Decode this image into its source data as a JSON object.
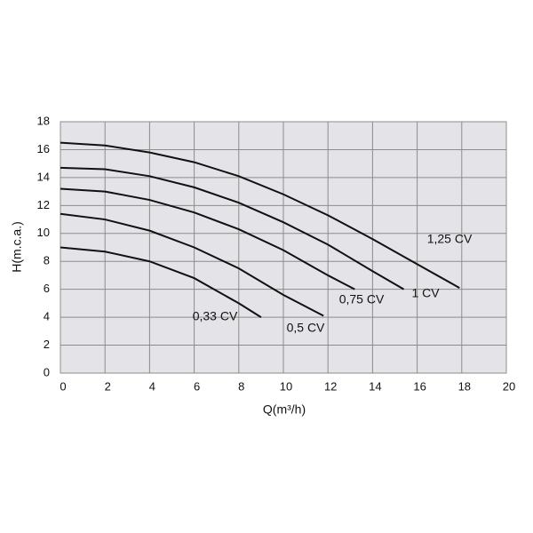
{
  "chart_data": {
    "type": "line",
    "xlabel": "Q(m³/h)",
    "ylabel": "H(m.c.a.)",
    "xlim": [
      0,
      20
    ],
    "xticks": [
      0,
      2,
      4,
      6,
      8,
      10,
      12,
      14,
      16,
      18,
      20
    ],
    "ylim": [
      0,
      18
    ],
    "yticks": [
      0,
      2,
      4,
      6,
      8,
      10,
      12,
      14,
      16,
      18
    ],
    "grid": true,
    "background": "#e4e4e8",
    "grid_color": "#8c8c8c",
    "series": [
      {
        "name": "0,33 CV",
        "color": "#111111",
        "x": [
          0,
          2,
          4,
          6,
          8,
          9
        ],
        "values": [
          9.0,
          8.7,
          8.0,
          6.8,
          5.0,
          4.0
        ]
      },
      {
        "name": "0,5 CV",
        "color": "#111111",
        "x": [
          0,
          2,
          4,
          6,
          8,
          10,
          11.8
        ],
        "values": [
          11.4,
          11.0,
          10.2,
          9.0,
          7.5,
          5.6,
          4.1
        ]
      },
      {
        "name": "0,75 CV",
        "color": "#111111",
        "x": [
          0,
          2,
          4,
          6,
          8,
          10,
          12,
          13.2
        ],
        "values": [
          13.2,
          13.0,
          12.4,
          11.5,
          10.3,
          8.8,
          7.0,
          6.0
        ]
      },
      {
        "name": "1 CV",
        "color": "#111111",
        "x": [
          0,
          2,
          4,
          6,
          8,
          10,
          12,
          14,
          15.4
        ],
        "values": [
          14.7,
          14.6,
          14.1,
          13.3,
          12.2,
          10.8,
          9.2,
          7.3,
          6.0
        ]
      },
      {
        "name": "1,25 CV",
        "color": "#111111",
        "x": [
          0,
          2,
          4,
          6,
          8,
          10,
          12,
          14,
          16,
          17.9
        ],
        "values": [
          16.5,
          16.3,
          15.8,
          15.1,
          14.1,
          12.8,
          11.3,
          9.6,
          7.8,
          6.1
        ]
      }
    ]
  }
}
